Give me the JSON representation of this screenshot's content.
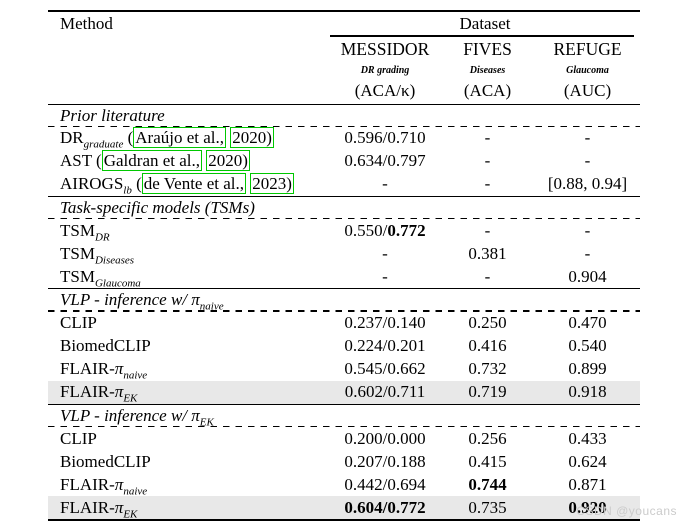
{
  "header": {
    "method_label": "Method",
    "dataset_label": "Dataset",
    "columns": [
      {
        "name": "MESSIDOR",
        "task": "DR grading",
        "metric": "(ACA/κ)"
      },
      {
        "name": "FIVES",
        "task": "Diseases",
        "metric": "(ACA)"
      },
      {
        "name": "REFUGE",
        "task": "Glaucoma",
        "metric": "(AUC)"
      }
    ]
  },
  "sections": [
    {
      "title": [
        {
          "t": "text",
          "v": "Prior literature"
        }
      ],
      "rows": [
        {
          "highlight": false,
          "method": [
            {
              "t": "text",
              "v": "DR"
            },
            {
              "t": "sub",
              "v": "graduate"
            },
            {
              "t": "text",
              "v": " ("
            },
            {
              "t": "cite",
              "v": "Araújo et al.,"
            },
            {
              "t": "text",
              "v": " "
            },
            {
              "t": "cite",
              "v": "2020)"
            }
          ],
          "cells": [
            [
              {
                "t": "text",
                "v": "0.596/0.710"
              }
            ],
            [
              {
                "t": "text",
                "v": "-"
              }
            ],
            [
              {
                "t": "text",
                "v": "-"
              }
            ]
          ]
        },
        {
          "highlight": false,
          "method": [
            {
              "t": "text",
              "v": "AST ("
            },
            {
              "t": "cite",
              "v": "Galdran et al.,"
            },
            {
              "t": "text",
              "v": " "
            },
            {
              "t": "cite",
              "v": "2020)"
            }
          ],
          "cells": [
            [
              {
                "t": "text",
                "v": "0.634/0.797"
              }
            ],
            [
              {
                "t": "text",
                "v": "-"
              }
            ],
            [
              {
                "t": "text",
                "v": "-"
              }
            ]
          ]
        },
        {
          "highlight": false,
          "method": [
            {
              "t": "text",
              "v": "AIROGS"
            },
            {
              "t": "sub",
              "v": "lb"
            },
            {
              "t": "text",
              "v": " ("
            },
            {
              "t": "cite",
              "v": "de Vente et al.,"
            },
            {
              "t": "text",
              "v": " "
            },
            {
              "t": "cite",
              "v": "2023)"
            }
          ],
          "cells": [
            [
              {
                "t": "text",
                "v": "-"
              }
            ],
            [
              {
                "t": "text",
                "v": "-"
              }
            ],
            [
              {
                "t": "text",
                "v": "[0.88, 0.94]"
              }
            ]
          ]
        }
      ]
    },
    {
      "title": [
        {
          "t": "text",
          "v": "Task-specific models (TSMs)"
        }
      ],
      "rows": [
        {
          "highlight": false,
          "method": [
            {
              "t": "text",
              "v": "TSM"
            },
            {
              "t": "sub",
              "v": "DR"
            }
          ],
          "cells": [
            [
              {
                "t": "text",
                "v": "0.550/"
              },
              {
                "t": "b",
                "v": "0.772"
              }
            ],
            [
              {
                "t": "text",
                "v": "-"
              }
            ],
            [
              {
                "t": "text",
                "v": "-"
              }
            ]
          ]
        },
        {
          "highlight": false,
          "method": [
            {
              "t": "text",
              "v": "TSM"
            },
            {
              "t": "sub",
              "v": "Diseases"
            }
          ],
          "cells": [
            [
              {
                "t": "text",
                "v": "-"
              }
            ],
            [
              {
                "t": "text",
                "v": "0.381"
              }
            ],
            [
              {
                "t": "text",
                "v": "-"
              }
            ]
          ]
        },
        {
          "highlight": false,
          "method": [
            {
              "t": "text",
              "v": "TSM"
            },
            {
              "t": "sub",
              "v": "Glaucoma"
            }
          ],
          "cells": [
            [
              {
                "t": "text",
                "v": "-"
              }
            ],
            [
              {
                "t": "text",
                "v": "-"
              }
            ],
            [
              {
                "t": "text",
                "v": "0.904"
              }
            ]
          ]
        }
      ]
    },
    {
      "title": [
        {
          "t": "text",
          "v": "VLP - inference w/ π"
        },
        {
          "t": "sub",
          "v": "naive"
        }
      ],
      "rows": [
        {
          "highlight": false,
          "method": [
            {
              "t": "text",
              "v": "CLIP"
            }
          ],
          "cells": [
            [
              {
                "t": "text",
                "v": "0.237/0.140"
              }
            ],
            [
              {
                "t": "text",
                "v": "0.250"
              }
            ],
            [
              {
                "t": "text",
                "v": "0.470"
              }
            ]
          ]
        },
        {
          "highlight": false,
          "method": [
            {
              "t": "text",
              "v": "BiomedCLIP"
            }
          ],
          "cells": [
            [
              {
                "t": "text",
                "v": "0.224/0.201"
              }
            ],
            [
              {
                "t": "text",
                "v": "0.416"
              }
            ],
            [
              {
                "t": "text",
                "v": "0.540"
              }
            ]
          ]
        },
        {
          "highlight": false,
          "method": [
            {
              "t": "text",
              "v": "FLAIR-"
            },
            {
              "t": "i",
              "v": "π"
            },
            {
              "t": "sub",
              "v": "naive"
            }
          ],
          "cells": [
            [
              {
                "t": "text",
                "v": "0.545/0.662"
              }
            ],
            [
              {
                "t": "text",
                "v": "0.732"
              }
            ],
            [
              {
                "t": "text",
                "v": "0.899"
              }
            ]
          ]
        },
        {
          "highlight": true,
          "method": [
            {
              "t": "text",
              "v": "FLAIR-"
            },
            {
              "t": "i",
              "v": "π"
            },
            {
              "t": "sub",
              "v": "EK"
            }
          ],
          "cells": [
            [
              {
                "t": "text",
                "v": "0.602/0.711"
              }
            ],
            [
              {
                "t": "text",
                "v": "0.719"
              }
            ],
            [
              {
                "t": "text",
                "v": "0.918"
              }
            ]
          ]
        }
      ]
    },
    {
      "title": [
        {
          "t": "text",
          "v": "VLP - inference w/ π"
        },
        {
          "t": "sub",
          "v": "EK"
        }
      ],
      "rows": [
        {
          "highlight": false,
          "method": [
            {
              "t": "text",
              "v": "CLIP"
            }
          ],
          "cells": [
            [
              {
                "t": "text",
                "v": "0.200/0.000"
              }
            ],
            [
              {
                "t": "text",
                "v": "0.256"
              }
            ],
            [
              {
                "t": "text",
                "v": "0.433"
              }
            ]
          ]
        },
        {
          "highlight": false,
          "method": [
            {
              "t": "text",
              "v": "BiomedCLIP"
            }
          ],
          "cells": [
            [
              {
                "t": "text",
                "v": "0.207/0.188"
              }
            ],
            [
              {
                "t": "text",
                "v": "0.415"
              }
            ],
            [
              {
                "t": "text",
                "v": "0.624"
              }
            ]
          ]
        },
        {
          "highlight": false,
          "method": [
            {
              "t": "text",
              "v": "FLAIR-"
            },
            {
              "t": "i",
              "v": "π"
            },
            {
              "t": "sub",
              "v": "naive"
            }
          ],
          "cells": [
            [
              {
                "t": "text",
                "v": "0.442/0.694"
              }
            ],
            [
              {
                "t": "b",
                "v": "0.744"
              }
            ],
            [
              {
                "t": "text",
                "v": "0.871"
              }
            ]
          ]
        },
        {
          "highlight": true,
          "method": [
            {
              "t": "text",
              "v": "FLAIR-"
            },
            {
              "t": "i",
              "v": "π"
            },
            {
              "t": "sub",
              "v": "EK"
            }
          ],
          "cells": [
            [
              {
                "t": "b",
                "v": "0.604/0.772"
              }
            ],
            [
              {
                "t": "text",
                "v": "0.735"
              }
            ],
            [
              {
                "t": "b",
                "v": "0.920"
              }
            ]
          ]
        }
      ]
    }
  ],
  "watermark": "CSDN @youcans",
  "colors": {
    "highlight_row": "#e8e8e8",
    "citation_box": "#00c800",
    "watermark": "#cbcbcb",
    "rule": "#000000"
  }
}
